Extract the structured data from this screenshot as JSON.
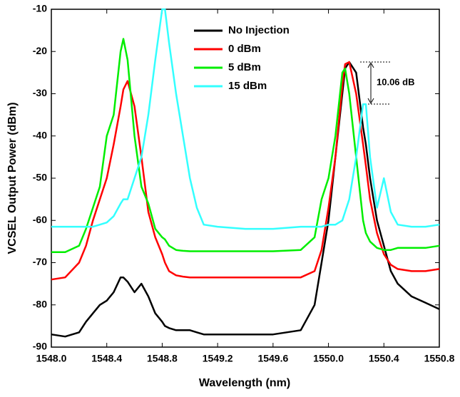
{
  "chart_data": {
    "type": "line",
    "x_label": "Wavelength (nm)",
    "y_label": "VCSEL Output Power (dBm)",
    "annotation": "10.06 dB",
    "x": [
      1548.0,
      1548.1,
      1548.2,
      1548.25,
      1548.3,
      1548.35,
      1548.4,
      1548.45,
      1548.5,
      1548.52,
      1548.55,
      1548.6,
      1548.65,
      1548.7,
      1548.75,
      1548.8,
      1548.82,
      1548.85,
      1548.9,
      1548.95,
      1549.0,
      1549.05,
      1549.1,
      1549.2,
      1549.4,
      1549.6,
      1549.8,
      1549.9,
      1549.95,
      1550.0,
      1550.05,
      1550.1,
      1550.12,
      1550.15,
      1550.2,
      1550.25,
      1550.27,
      1550.3,
      1550.35,
      1550.4,
      1550.45,
      1550.5,
      1550.6,
      1550.7,
      1550.8
    ],
    "series": [
      {
        "name": "No Injection",
        "color": "#000000",
        "values": [
          -87,
          -87.5,
          -86.5,
          -84,
          -82,
          -80,
          -79,
          -77,
          -73.5,
          -73.5,
          -74.5,
          -77,
          -75,
          -78,
          -82,
          -84,
          -85,
          -85.5,
          -86,
          -86,
          -86,
          -86.5,
          -87,
          -87,
          -87,
          -87,
          -86,
          -80,
          -70,
          -60,
          -45,
          -30,
          -24,
          -22.5,
          -25,
          -38,
          -42,
          -50,
          -60,
          -66,
          -72,
          -75,
          -78,
          -79.5,
          -81
        ]
      },
      {
        "name": "0 dBm",
        "color": "#ff0000",
        "values": [
          -74,
          -73.5,
          -70,
          -66,
          -60,
          -55,
          -50,
          -42,
          -33,
          -29,
          -27,
          -33,
          -45,
          -58,
          -64,
          -68,
          -70,
          -72,
          -73,
          -73.3,
          -73.5,
          -73.5,
          -73.5,
          -73.5,
          -73.5,
          -73.5,
          -73.5,
          -72,
          -67,
          -57,
          -45,
          -28,
          -23,
          -22.5,
          -30,
          -42,
          -47,
          -55,
          -63,
          -68,
          -70.5,
          -71.5,
          -72,
          -72,
          -71.5
        ]
      },
      {
        "name": "5 dBm",
        "color": "#00ee00",
        "values": [
          -67.5,
          -67.5,
          -66,
          -62,
          -57,
          -52,
          -40,
          -35,
          -20,
          -17,
          -22,
          -40,
          -52,
          -56,
          -62,
          -64,
          -64.5,
          -66,
          -67,
          -67.2,
          -67.3,
          -67.3,
          -67.3,
          -67.3,
          -67.3,
          -67.3,
          -67,
          -64,
          -55,
          -50,
          -40,
          -25,
          -24,
          -30,
          -45,
          -60,
          -63,
          -65,
          -66.5,
          -67,
          -67,
          -66.5,
          -66.5,
          -66.5,
          -66
        ]
      },
      {
        "name": "15 dBm",
        "color": "#33ffff",
        "values": [
          -61.5,
          -61.5,
          -61.5,
          -61.5,
          -61.5,
          -61,
          -60.5,
          -59,
          -56,
          -55,
          -55,
          -50,
          -45,
          -35,
          -22,
          -10,
          -10,
          -18,
          -30,
          -40,
          -50,
          -57,
          -61,
          -61.5,
          -62,
          -62,
          -61.5,
          -61.5,
          -61.5,
          -61,
          -61,
          -60,
          -58,
          -55,
          -45,
          -32.5,
          -32.5,
          -45,
          -57,
          -50,
          -58,
          -61,
          -61.5,
          -61.5,
          -61
        ]
      }
    ],
    "xlim": [
      1548.0,
      1550.8
    ],
    "xticks": [
      {
        "value": 1548,
        "label": "1548.0"
      },
      1548.4,
      1548.8,
      1549.2,
      1549.6,
      {
        "value": 1550,
        "label": "1550.0"
      },
      1550.4,
      1550.8
    ],
    "ylim": [
      -90,
      -10
    ],
    "yticks": [
      -90,
      -80,
      -70,
      -60,
      -50,
      -40,
      -30,
      -20,
      -10
    ],
    "grid": false
  }
}
